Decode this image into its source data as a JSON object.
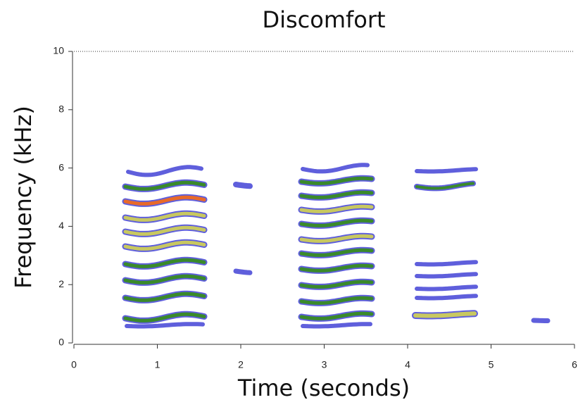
{
  "chart_data": {
    "type": "spectrogram",
    "title": "Discomfort",
    "x_label": "Time (seconds)",
    "y_label": "Frequency (kHz)",
    "xlim": [
      0,
      6
    ],
    "xticks": [
      0,
      1,
      2,
      3,
      4,
      5,
      6
    ],
    "ylim": [
      0,
      10
    ],
    "yticks": [
      0,
      2,
      4,
      6,
      8,
      10
    ]
  }
}
